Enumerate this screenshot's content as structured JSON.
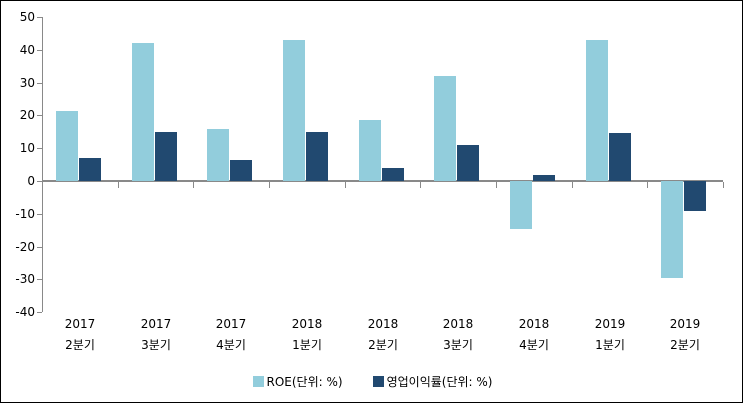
{
  "chart_data": {
    "type": "bar",
    "title": "",
    "xlabel": "",
    "ylabel": "",
    "categories": [
      "2017 2분기",
      "2017 3분기",
      "2017 4분기",
      "2018 1분기",
      "2018 2분기",
      "2018 3분기",
      "2018 4분기",
      "2019 1분기",
      "2019 2분기"
    ],
    "series": [
      {
        "name": "ROE(단위: %)",
        "color": "#92CDDC",
        "values": [
          21.5,
          42,
          16,
          43,
          18.5,
          32,
          -14.5,
          43,
          -29.5
        ]
      },
      {
        "name": "영업이익률(단위: %)",
        "color": "#214970",
        "values": [
          7,
          15,
          6.5,
          15,
          4,
          11,
          1.7,
          14.5,
          -9
        ]
      }
    ],
    "ylim": [
      -40,
      50
    ],
    "ytick_step": 10,
    "ytick_labels": [
      "50",
      "40",
      "30",
      "20",
      "10",
      "0",
      "-10",
      "-20",
      "-30",
      "-40"
    ],
    "grid": false,
    "legend_position": "bottom",
    "axis_color": "#898989",
    "background_color": "#ffffff",
    "border_color": "#000000"
  }
}
